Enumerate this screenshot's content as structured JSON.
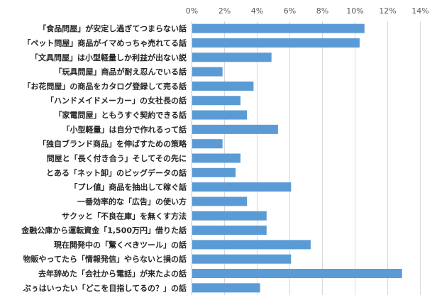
{
  "chart_data": {
    "type": "bar",
    "orientation": "horizontal",
    "title": "",
    "xlabel": "",
    "ylabel": "",
    "xlim": [
      0,
      14
    ],
    "x_ticks": [
      "0%",
      "2%",
      "4%",
      "6%",
      "8%",
      "10%",
      "12%",
      "14%"
    ],
    "grid": true,
    "legend": "none",
    "bar_color": "#5b9bd5",
    "categories": [
      "「食品問屋」が安定し過ぎてつまらない話",
      "「ペット問屋」商品がイマめっちゃ売れてる話",
      "「文具問屋」は小型軽量しか利益が出ない説",
      "「玩具問屋」商品が耐え忍んでいる話",
      "「お花問屋」の商品をカタログ登録して売る話",
      "「ハンドメイドメーカー」の女社長の話",
      "「家電問屋」ともうすぐ契約できる話",
      "「小型軽量」は自分で作れるって話",
      "「独自ブランド商品」を伸ばすための策略",
      "問屋と「長く付き合う」そしてその先に",
      "とある「ネット卸」のビッグデータの話",
      "「プレ値」商品を抽出して稼ぐ話",
      "一番効率的な「広告」の使い方",
      "サクッと「不良在庫」を無くす方法",
      "金融公庫から運転資金「1,500万円」借りた話",
      "現在開発中の「驚くべきツール」の話",
      "物販やってたら「情報発信」やらないと損の話",
      "去年辞めた「会社から電話」が来たよの話",
      "ぷぅはいったい「どこを目指してるの？」の話"
    ],
    "values": [
      10.6,
      10.3,
      4.9,
      1.9,
      3.8,
      3.0,
      3.4,
      5.3,
      1.9,
      3.0,
      2.7,
      6.1,
      3.4,
      4.6,
      4.6,
      7.3,
      6.1,
      12.9,
      4.2
    ]
  }
}
